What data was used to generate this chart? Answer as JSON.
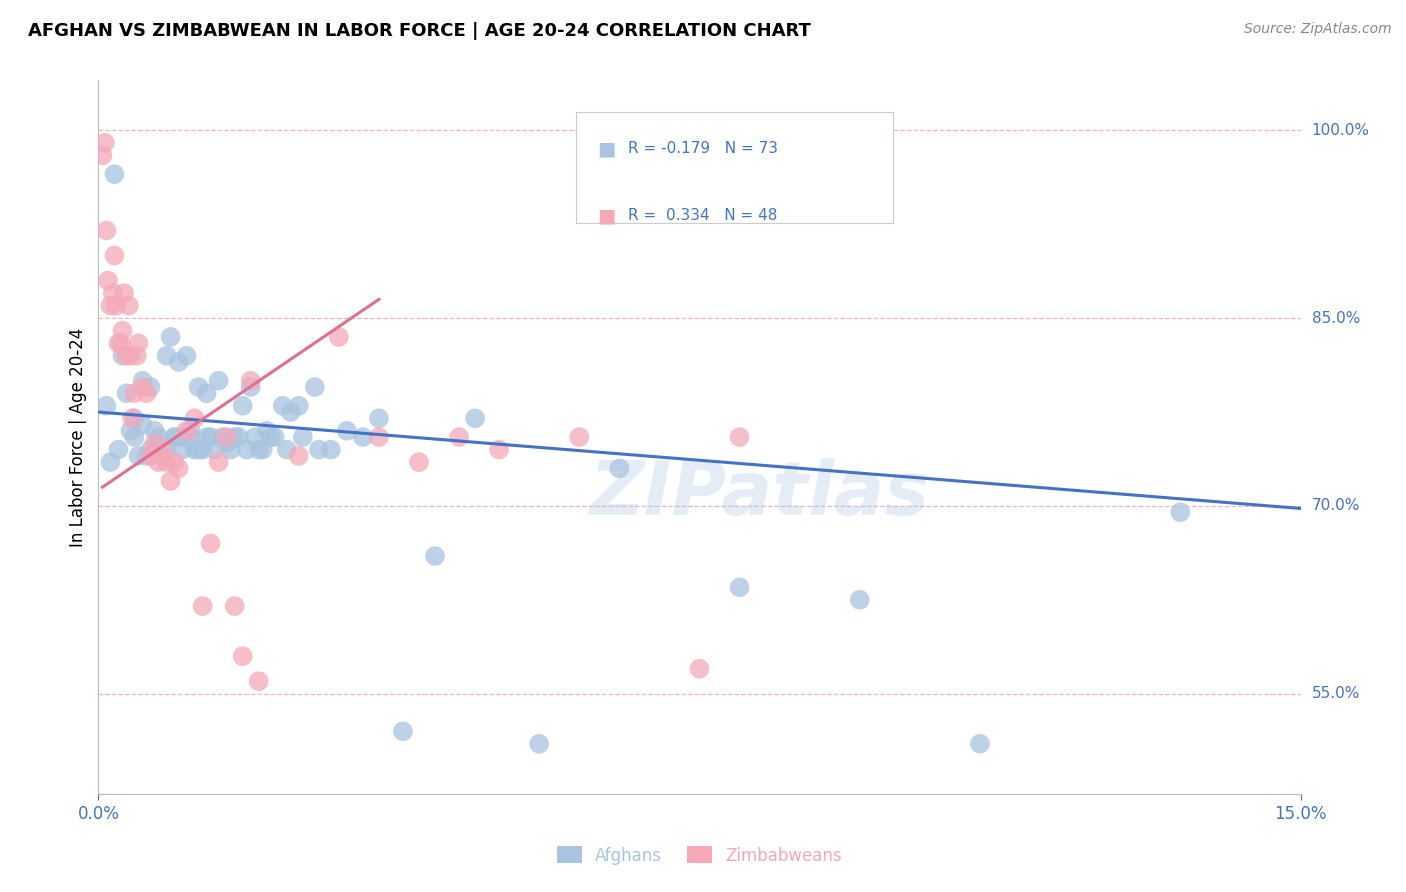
{
  "title": "AFGHAN VS ZIMBABWEAN IN LABOR FORCE | AGE 20-24 CORRELATION CHART",
  "source": "Source: ZipAtlas.com",
  "ylabel": "In Labor Force | Age 20-24",
  "xmin": 0.0,
  "xmax": 15.0,
  "ymin": 0.47,
  "ymax": 1.04,
  "yticks": [
    0.55,
    0.7,
    0.85,
    1.0
  ],
  "ytick_labels": [
    "55.0%",
    "70.0%",
    "85.0%",
    "100.0%"
  ],
  "legend_r_afghan": "-0.179",
  "legend_n_afghan": "73",
  "legend_r_zimb": "0.334",
  "legend_n_zimb": "48",
  "afghan_color": "#a8c4e0",
  "zimb_color": "#f4a8b8",
  "afghan_line_color": "#4472c4",
  "zimb_line_color": "#e07090",
  "legend_text_color": "#4472c4",
  "watermark": "ZIPatlas",
  "grid_color": "#f0b0c8",
  "afghan_scatter_x": [
    0.1,
    0.2,
    0.3,
    0.35,
    0.4,
    0.45,
    0.5,
    0.55,
    0.6,
    0.65,
    0.7,
    0.75,
    0.8,
    0.85,
    0.9,
    0.95,
    1.0,
    1.05,
    1.1,
    1.15,
    1.2,
    1.25,
    1.3,
    1.35,
    1.4,
    1.5,
    1.6,
    1.7,
    1.8,
    1.9,
    2.0,
    2.1,
    2.2,
    2.3,
    2.4,
    2.5,
    2.7,
    2.9,
    3.1,
    3.3,
    3.5,
    3.8,
    4.2,
    4.7,
    5.5,
    6.5,
    8.0,
    9.5,
    11.0,
    13.5,
    0.15,
    0.25,
    0.45,
    0.55,
    0.65,
    0.75,
    0.85,
    0.95,
    1.05,
    1.15,
    1.25,
    1.35,
    1.45,
    1.55,
    1.65,
    1.75,
    1.85,
    1.95,
    2.05,
    2.15,
    2.35,
    2.55,
    2.75
  ],
  "afghan_scatter_y": [
    0.78,
    0.965,
    0.82,
    0.79,
    0.76,
    0.77,
    0.74,
    0.8,
    0.74,
    0.795,
    0.76,
    0.75,
    0.74,
    0.82,
    0.835,
    0.755,
    0.815,
    0.755,
    0.82,
    0.76,
    0.745,
    0.795,
    0.745,
    0.79,
    0.755,
    0.8,
    0.75,
    0.755,
    0.78,
    0.795,
    0.745,
    0.76,
    0.755,
    0.78,
    0.775,
    0.78,
    0.795,
    0.745,
    0.76,
    0.755,
    0.77,
    0.52,
    0.66,
    0.77,
    0.51,
    0.73,
    0.635,
    0.625,
    0.51,
    0.695,
    0.735,
    0.745,
    0.755,
    0.765,
    0.745,
    0.755,
    0.745,
    0.755,
    0.745,
    0.755,
    0.745,
    0.755,
    0.745,
    0.755,
    0.745,
    0.755,
    0.745,
    0.755,
    0.745,
    0.755,
    0.745,
    0.755,
    0.745
  ],
  "zimb_scatter_x": [
    0.05,
    0.08,
    0.1,
    0.12,
    0.15,
    0.18,
    0.2,
    0.22,
    0.25,
    0.28,
    0.3,
    0.32,
    0.35,
    0.38,
    0.4,
    0.42,
    0.45,
    0.48,
    0.5,
    0.55,
    0.6,
    0.65,
    0.7,
    0.75,
    0.8,
    0.85,
    0.9,
    0.95,
    1.0,
    1.1,
    1.2,
    1.3,
    1.4,
    1.5,
    1.6,
    1.7,
    1.8,
    1.9,
    2.0,
    2.5,
    3.0,
    3.5,
    4.0,
    4.5,
    5.0,
    6.0,
    7.5,
    8.0
  ],
  "zimb_scatter_y": [
    0.98,
    0.99,
    0.92,
    0.88,
    0.86,
    0.87,
    0.9,
    0.86,
    0.83,
    0.83,
    0.84,
    0.87,
    0.82,
    0.86,
    0.82,
    0.77,
    0.79,
    0.82,
    0.83,
    0.795,
    0.79,
    0.74,
    0.75,
    0.735,
    0.745,
    0.735,
    0.72,
    0.735,
    0.73,
    0.76,
    0.77,
    0.62,
    0.67,
    0.735,
    0.755,
    0.62,
    0.58,
    0.8,
    0.56,
    0.74,
    0.835,
    0.755,
    0.735,
    0.755,
    0.745,
    0.755,
    0.57,
    0.755
  ],
  "afghan_line_x": [
    0.0,
    15.0
  ],
  "afghan_line_y": [
    0.775,
    0.698
  ],
  "zimb_line_x": [
    0.05,
    3.5
  ],
  "zimb_line_y": [
    0.715,
    0.865
  ]
}
